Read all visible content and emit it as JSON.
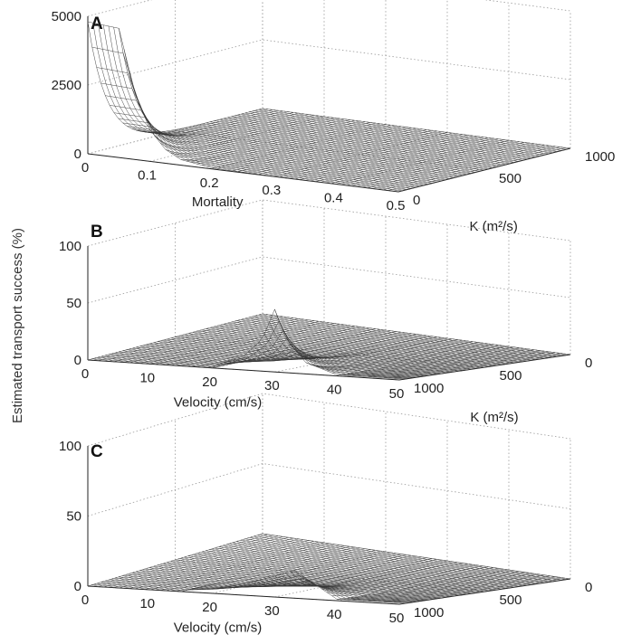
{
  "figure": {
    "shared_ylabel": "Estimated transport success (%)"
  },
  "chart_data": [
    {
      "type": "surface",
      "panel": "A",
      "xlabel": "Mortality",
      "x_ticks": [
        "0",
        "0.1",
        "0.2",
        "0.3",
        "0.4",
        "0.5"
      ],
      "xlim": [
        0,
        0.5
      ],
      "ylabel": "K (m²/s)",
      "y_ticks": [
        "0",
        "500",
        "1000"
      ],
      "ylim": [
        0,
        1000
      ],
      "z_ticks": [
        "0",
        "2500",
        "5000"
      ],
      "zlim": [
        0,
        5000
      ],
      "surface_profile": {
        "x": [
          0.0,
          0.05,
          0.075,
          0.1,
          0.125,
          0.15,
          0.2,
          0.3,
          0.5
        ],
        "peak_z": [
          4800,
          4700,
          2500,
          1150,
          500,
          200,
          40,
          5,
          0
        ],
        "peak_at_K": 0
      },
      "grid": true
    },
    {
      "type": "surface",
      "panel": "B",
      "xlabel": "Velocity (cm/s)",
      "x_ticks": [
        "0",
        "10",
        "20",
        "30",
        "40",
        "50"
      ],
      "xlim": [
        0,
        50
      ],
      "ylabel": "K (m²/s)",
      "y_ticks": [
        "0",
        "500",
        "1000"
      ],
      "ylim": [
        1000,
        0
      ],
      "z_ticks": [
        "0",
        "50",
        "100"
      ],
      "zlim": [
        0,
        100
      ],
      "surface_profile": {
        "x": [
          20,
          25,
          28,
          30,
          32,
          35,
          40
        ],
        "peak_z": [
          2,
          12,
          28,
          55,
          28,
          10,
          1
        ],
        "peak_at_K": 1000
      },
      "grid": true
    },
    {
      "type": "surface",
      "panel": "C",
      "xlabel": "Velocity (cm/s)",
      "x_ticks": [
        "0",
        "10",
        "20",
        "30",
        "40",
        "50"
      ],
      "xlim": [
        0,
        50
      ],
      "ylabel": "K (m²/s)",
      "y_ticks": [
        "0",
        "500",
        "1000"
      ],
      "ylim": [
        1000,
        0
      ],
      "z_ticks": [
        "0",
        "50",
        "100"
      ],
      "zlim": [
        0,
        100
      ],
      "surface_profile": {
        "x": [
          15,
          20,
          25,
          30,
          33,
          36,
          40
        ],
        "peak_z": [
          1,
          3,
          8,
          15,
          20,
          12,
          1
        ],
        "peak_at_K": 1000
      },
      "grid": true
    }
  ]
}
